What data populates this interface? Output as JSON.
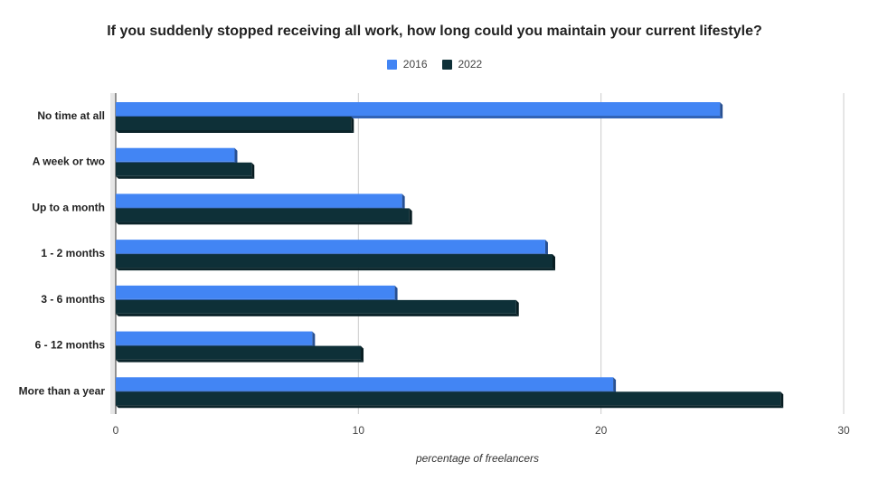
{
  "chart_data": {
    "type": "bar",
    "orientation": "horizontal",
    "title": "If you suddenly stopped receiving all work, how long could you maintain your current lifestyle?",
    "xlabel": "percentage of freelancers",
    "ylabel": "",
    "xlim": [
      0,
      30
    ],
    "xticks": [
      0,
      10,
      20,
      30
    ],
    "grid": true,
    "legend_position": "top",
    "categories": [
      "No time at all",
      "A week or two",
      "Up to a month",
      "1 - 2 months",
      "3 - 6 months",
      "6 - 12 months",
      "More than a year"
    ],
    "series": [
      {
        "name": "2016",
        "color": "#4285f4",
        "values": [
          24.9,
          4.9,
          11.8,
          17.7,
          11.5,
          8.1,
          20.5
        ]
      },
      {
        "name": "2022",
        "color": "#0e3038",
        "values": [
          9.7,
          5.6,
          12.1,
          18.0,
          16.5,
          10.1,
          27.4
        ]
      }
    ]
  }
}
